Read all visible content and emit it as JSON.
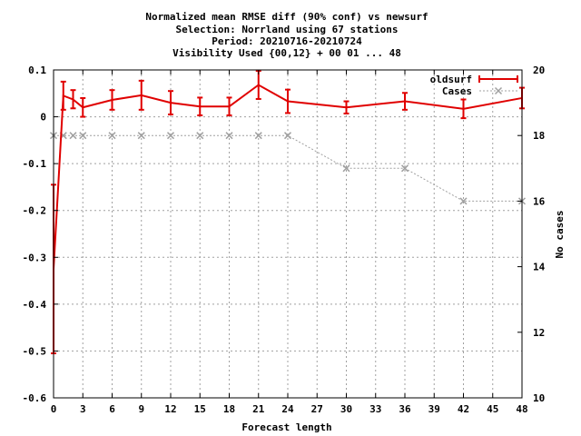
{
  "chart_data": {
    "type": "line",
    "title_lines": [
      "Normalized mean RMSE diff (90% conf) vs newsurf",
      "Selection: Norrland using    67 stations",
      "Period: 20210716-20210724",
      "Visibility   Used {00,12} + 00 01 ... 48"
    ],
    "xlabel": "Forecast length",
    "ylabel": "",
    "y2label": "No cases",
    "xlim": [
      0,
      48
    ],
    "ylim": [
      -0.6,
      0.1
    ],
    "y2lim": [
      10,
      20
    ],
    "x_ticks": [
      0,
      3,
      6,
      9,
      12,
      15,
      18,
      21,
      24,
      27,
      30,
      33,
      36,
      39,
      42,
      45,
      48
    ],
    "y_ticks": [
      -0.6,
      -0.5,
      -0.4,
      -0.3,
      -0.2,
      -0.1,
      0,
      0.1
    ],
    "y_tick_labels": [
      "-0.6",
      "-0.5",
      "-0.4",
      "-0.3",
      "-0.2",
      "-0.1",
      "0",
      "0.1"
    ],
    "y2_ticks": [
      10,
      12,
      14,
      16,
      18,
      20
    ],
    "grid": true,
    "legend_position": "top-right",
    "series": [
      {
        "name": "oldsurf",
        "axis": "y",
        "color": "#e00000",
        "x": [
          0,
          1,
          2,
          3,
          6,
          9,
          12,
          15,
          18,
          21,
          24,
          30,
          36,
          42,
          48
        ],
        "y": [
          -0.325,
          0.045,
          0.037,
          0.02,
          0.036,
          0.046,
          0.03,
          0.022,
          0.022,
          0.068,
          0.033,
          0.02,
          0.033,
          0.017,
          0.04
        ],
        "y_low": [
          -0.505,
          0.015,
          0.018,
          0.0,
          0.015,
          0.015,
          0.005,
          0.003,
          0.003,
          0.038,
          0.008,
          0.007,
          0.015,
          -0.003,
          0.018
        ],
        "y_high": [
          -0.145,
          0.075,
          0.057,
          0.04,
          0.057,
          0.077,
          0.055,
          0.041,
          0.041,
          0.098,
          0.058,
          0.033,
          0.051,
          0.037,
          0.062
        ]
      },
      {
        "name": "Cases",
        "axis": "y2",
        "color": "#a0a0a0",
        "x": [
          0,
          1,
          2,
          3,
          6,
          9,
          12,
          15,
          18,
          21,
          24,
          30,
          36,
          42,
          48
        ],
        "y": [
          18,
          18,
          18,
          18,
          18,
          18,
          18,
          18,
          18,
          18,
          18,
          17,
          17,
          16,
          16
        ]
      }
    ]
  }
}
